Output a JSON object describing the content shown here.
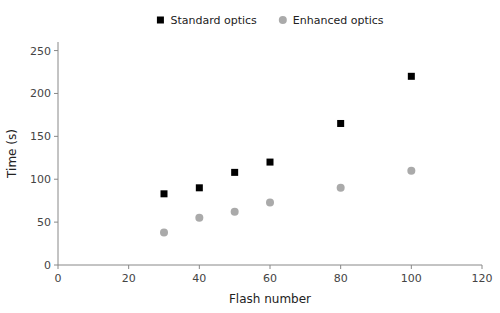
{
  "chart_data": {
    "type": "scatter",
    "xlabel": "Flash number",
    "ylabel": "Time (s)",
    "x": [
      30,
      40,
      50,
      60,
      80,
      100
    ],
    "series": [
      {
        "name": "Standard optics",
        "color": "#000000",
        "marker": "square",
        "values": [
          83,
          90,
          108,
          120,
          165,
          220
        ]
      },
      {
        "name": "Enhanced optics",
        "color": "#aaaaaa",
        "marker": "circle",
        "values": [
          38,
          55,
          62,
          73,
          90,
          110
        ]
      }
    ],
    "xlim": [
      0,
      120
    ],
    "ylim": [
      0,
      260
    ],
    "xticks": [
      0,
      20,
      40,
      60,
      80,
      100,
      120
    ],
    "yticks": [
      0,
      50,
      100,
      150,
      200,
      250
    ],
    "grid": false,
    "legend": "top"
  }
}
